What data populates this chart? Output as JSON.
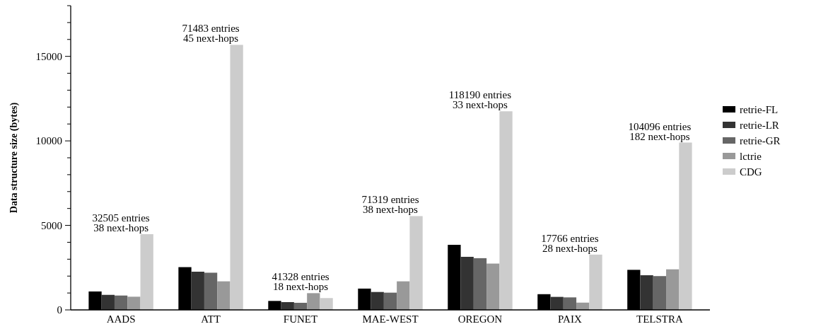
{
  "chart_data": {
    "type": "bar",
    "ylabel": "Data structure size (bytes)",
    "categories": [
      "AADS",
      "ATT",
      "FUNET",
      "MAE-WEST",
      "OREGON",
      "PAIX",
      "TELSTRA"
    ],
    "series": [
      {
        "name": "retrie-FL",
        "color": "#000000",
        "values": [
          1090,
          2530,
          530,
          1260,
          3850,
          930,
          2370
        ]
      },
      {
        "name": "retrie-LR",
        "color": "#333333",
        "values": [
          890,
          2260,
          460,
          1060,
          3140,
          770,
          2050
        ]
      },
      {
        "name": "retrie-GR",
        "color": "#666666",
        "values": [
          850,
          2200,
          420,
          1020,
          3060,
          740,
          2000
        ]
      },
      {
        "name": "lctrie",
        "color": "#999999",
        "values": [
          780,
          1690,
          990,
          1690,
          2740,
          430,
          2400
        ]
      },
      {
        "name": "CDG",
        "color": "#cccccc",
        "values": [
          4480,
          15680,
          700,
          5550,
          11750,
          3270,
          9900
        ]
      }
    ],
    "ylim": [
      0,
      18000
    ],
    "yticks": [
      0,
      {
        "value": 1000,
        "label": null
      },
      {
        "value": 2000,
        "label": null
      },
      {
        "value": 3000,
        "label": null
      },
      {
        "value": 4000,
        "label": null
      },
      5000,
      {
        "value": 6000,
        "label": null
      },
      {
        "value": 7000,
        "label": null
      },
      {
        "value": 8000,
        "label": null
      },
      {
        "value": 9000,
        "label": null
      },
      10000,
      {
        "value": 11000,
        "label": null
      },
      {
        "value": 12000,
        "label": null
      },
      {
        "value": 13000,
        "label": null
      },
      {
        "value": 14000,
        "label": null
      },
      15000,
      {
        "value": 16000,
        "label": null
      },
      {
        "value": 17000,
        "label": null
      },
      {
        "value": 18000,
        "label": null
      }
    ],
    "annotations": [
      "32505 entries\n38 next-hops",
      "71483 entries\n45 next-hops",
      "41328 entries\n18 next-hops",
      "71319 entries\n38 next-hops",
      "118190 entries\n33 next-hops",
      "17766 entries\n28 next-hops",
      "104096 entries\n182 next-hops"
    ],
    "legend": "right",
    "grid": false
  }
}
